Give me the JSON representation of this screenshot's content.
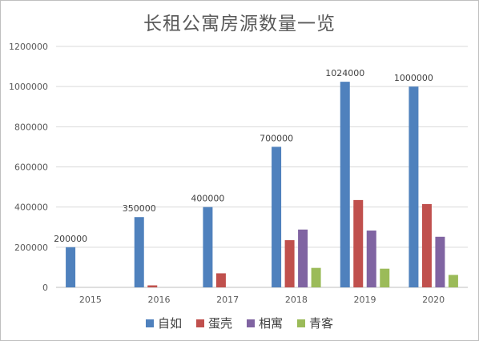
{
  "chart_data": {
    "type": "bar",
    "title": "长租公寓房源数量一览",
    "categories": [
      "2015",
      "2016",
      "2017",
      "2018",
      "2019",
      "2020"
    ],
    "series": [
      {
        "name": "自如",
        "color": "#4f81bd",
        "values": [
          200000,
          350000,
          400000,
          700000,
          1024000,
          1000000
        ]
      },
      {
        "name": "蛋壳",
        "color": "#c0504d",
        "values": [
          0,
          10000,
          70000,
          235000,
          435000,
          415000
        ]
      },
      {
        "name": "相寓",
        "color": "#8064a2",
        "values": [
          0,
          0,
          0,
          288000,
          283000,
          252000
        ]
      },
      {
        "name": "青客",
        "color": "#9bbb59",
        "values": [
          0,
          0,
          0,
          97000,
          93000,
          62000
        ]
      }
    ],
    "data_labels_series": 0,
    "ylim": [
      0,
      1200000
    ],
    "yticks": [
      "0",
      "200000",
      "400000",
      "600000",
      "800000",
      "1000000",
      "1200000"
    ],
    "grid": true,
    "legend_position": "bottom"
  }
}
